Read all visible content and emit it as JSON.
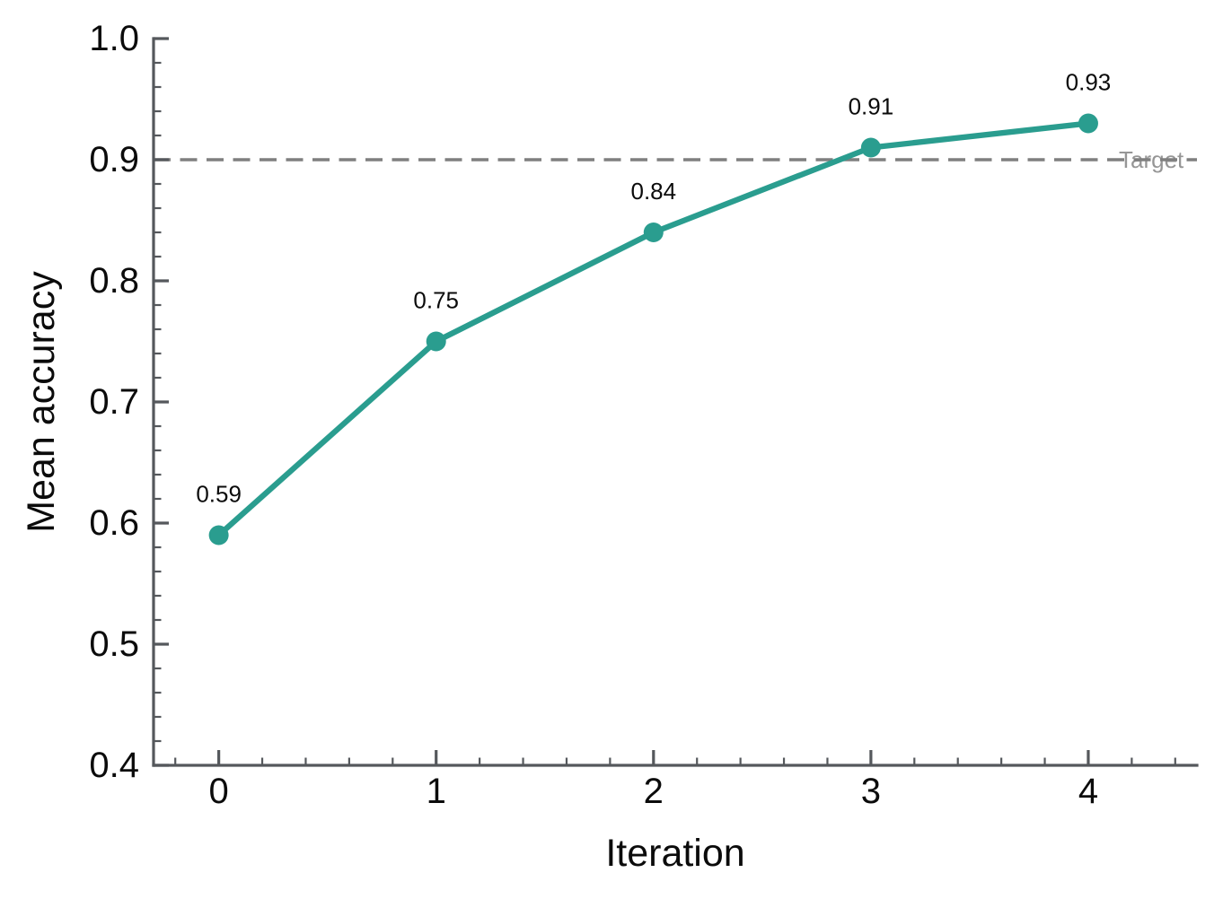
{
  "chart_data": {
    "type": "line",
    "xlabel": "Iteration",
    "ylabel": "Mean accuracy",
    "x": [
      0,
      1,
      2,
      3,
      4
    ],
    "series": [
      {
        "name": "Mean accuracy",
        "values": [
          0.59,
          0.75,
          0.84,
          0.91,
          0.93
        ]
      }
    ],
    "point_labels": [
      "0.59",
      "0.75",
      "0.84",
      "0.91",
      "0.93"
    ],
    "xlim": [
      -0.3,
      4.5
    ],
    "ylim": [
      0.4,
      1.0
    ],
    "xticks": {
      "values": [
        0,
        1,
        2,
        3,
        4
      ],
      "labels": [
        "0",
        "1",
        "2",
        "3",
        "4"
      ],
      "minor_step": 0.2
    },
    "yticks": {
      "values": [
        0.4,
        0.5,
        0.6,
        0.7,
        0.8,
        0.9,
        1.0
      ],
      "labels": [
        "0.4",
        "0.5",
        "0.6",
        "0.7",
        "0.8",
        "0.9",
        "1.0"
      ],
      "minor_step": 0.02
    },
    "reference_line": {
      "value": 0.9,
      "label": "Target",
      "label_x": 4.29,
      "style": "dashed"
    },
    "grid": false,
    "legend": null,
    "colors": {
      "line": "#2a9d8f",
      "marker": "#2a9d8f",
      "reference": "#7f7f7f",
      "reference_label": "#969696",
      "axis": "#55585c",
      "tick_label": "#0b0b0b",
      "axis_label": "#0b0b0b",
      "point_label": "#0b0b0b",
      "background": "#ffffff"
    }
  }
}
